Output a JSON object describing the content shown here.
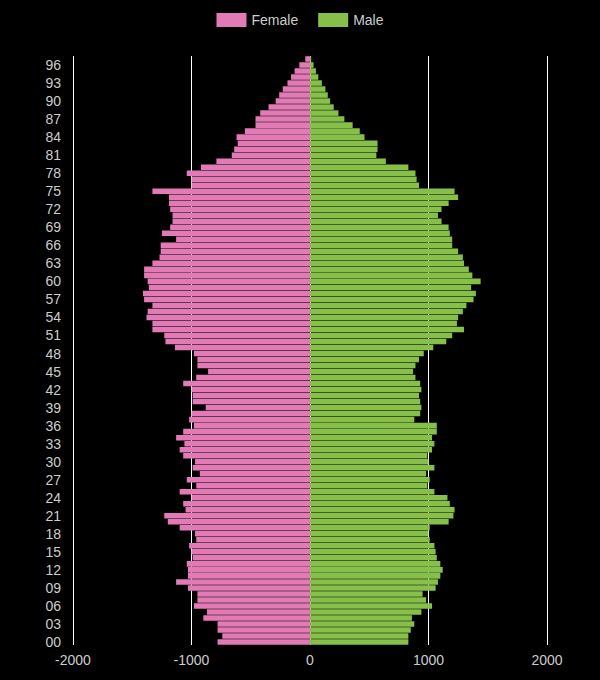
{
  "chart_data": {
    "type": "bar",
    "orientation": "horizontal",
    "categories": [
      "00",
      null,
      null,
      "03",
      null,
      null,
      "06",
      null,
      null,
      "09",
      null,
      null,
      "12",
      null,
      null,
      "15",
      null,
      null,
      "18",
      null,
      null,
      "21",
      null,
      null,
      "24",
      null,
      null,
      "27",
      null,
      null,
      "30",
      null,
      null,
      "33",
      null,
      null,
      "36",
      null,
      null,
      "39",
      null,
      null,
      "42",
      null,
      null,
      "45",
      null,
      null,
      "48",
      null,
      null,
      "51",
      null,
      null,
      "54",
      null,
      null,
      "57",
      null,
      null,
      "60",
      null,
      null,
      "63",
      null,
      null,
      "66",
      null,
      null,
      "69",
      null,
      null,
      "72",
      null,
      null,
      "75",
      null,
      null,
      "78",
      null,
      null,
      "81",
      null,
      null,
      "84",
      null,
      null,
      "87",
      null,
      null,
      "90",
      null,
      null,
      "93",
      null,
      null,
      "96",
      null
    ],
    "series": [
      {
        "name": "Female",
        "color": "#e27ab6",
        "values": [
          -780,
          -740,
          -780,
          -780,
          -900,
          -870,
          -980,
          -950,
          -950,
          -1030,
          -1130,
          -1030,
          -1030,
          -1040,
          -990,
          -1000,
          -1020,
          -960,
          -970,
          -1100,
          -1200,
          -1230,
          -1050,
          -1070,
          -1000,
          -1100,
          -960,
          -1040,
          -930,
          -990,
          -970,
          -1070,
          -1100,
          -1060,
          -1130,
          -1070,
          -980,
          -1020,
          -1000,
          -880,
          -990,
          -990,
          -1000,
          -1070,
          -960,
          -860,
          -950,
          -950,
          -980,
          -1140,
          -1220,
          -1230,
          -1330,
          -1330,
          -1380,
          -1370,
          -1330,
          -1400,
          -1410,
          -1360,
          -1370,
          -1400,
          -1400,
          -1330,
          -1270,
          -1260,
          -1260,
          -1130,
          -1250,
          -1180,
          -1160,
          -1160,
          -1180,
          -1190,
          -1190,
          -1330,
          -1000,
          -1000,
          -1040,
          -920,
          -790,
          -660,
          -640,
          -610,
          -620,
          -550,
          -460,
          -460,
          -420,
          -350,
          -290,
          -260,
          -230,
          -190,
          -160,
          -130,
          -90,
          -40
        ]
      },
      {
        "name": "Male",
        "color": "#86c04a",
        "values": [
          830,
          830,
          850,
          880,
          860,
          940,
          1030,
          980,
          950,
          1060,
          1080,
          1100,
          1120,
          1100,
          1070,
          1060,
          1050,
          1010,
          1000,
          1010,
          1170,
          1210,
          1220,
          1180,
          1160,
          1050,
          990,
          1010,
          980,
          1050,
          1000,
          990,
          1030,
          1050,
          1030,
          1070,
          1070,
          880,
          930,
          940,
          930,
          920,
          940,
          930,
          890,
          870,
          890,
          920,
          960,
          1040,
          1150,
          1200,
          1300,
          1240,
          1250,
          1290,
          1320,
          1380,
          1400,
          1360,
          1440,
          1370,
          1340,
          1300,
          1290,
          1250,
          1200,
          1200,
          1180,
          1170,
          1110,
          1080,
          1110,
          1170,
          1250,
          1220,
          920,
          900,
          890,
          830,
          640,
          560,
          570,
          570,
          460,
          420,
          360,
          290,
          240,
          200,
          170,
          150,
          130,
          100,
          70,
          50,
          30,
          10
        ]
      }
    ],
    "xlim": [
      -2000,
      2000
    ],
    "xticks": [
      -2000,
      -1000,
      0,
      1000,
      2000
    ],
    "grid": true,
    "legend": "top"
  }
}
